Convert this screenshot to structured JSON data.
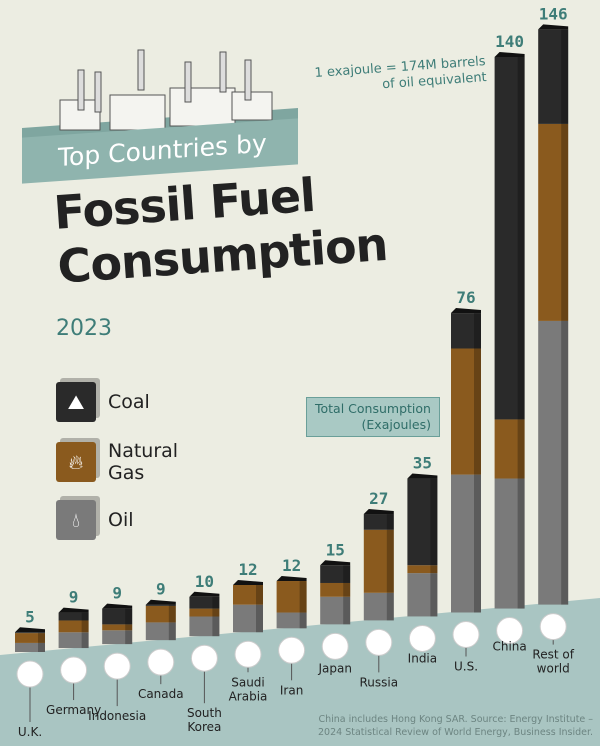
{
  "header": {
    "banner": "Top Countries by",
    "title_line1": "Fossil Fuel",
    "title_line2": "Consumption",
    "year": "2023"
  },
  "legend": [
    {
      "label": "Coal",
      "color": "#2a2a2a",
      "icon": "coal-rock-icon"
    },
    {
      "label": "Natural Gas",
      "color": "#8a5a1e",
      "icon": "flame-icon"
    },
    {
      "label": "Oil",
      "color": "#7a7a7a",
      "icon": "oil-drop-icon"
    }
  ],
  "note": {
    "line1": "1 exajoule = 174M barrels",
    "line2": "of oil equivalent"
  },
  "callout": {
    "line1": "Total Consumption",
    "line2": "(Exajoules)"
  },
  "source": {
    "line1": "China includes Hong Kong SAR. Source: Energy Institute –",
    "line2": "2024 Statistical Review of World Energy, Business Insider."
  },
  "chart_data": {
    "type": "bar",
    "stacked": true,
    "unit": "Exajoules",
    "categories": [
      "U.K.",
      "Germany",
      "Indonesia",
      "Canada",
      "South Korea",
      "Saudi Arabia",
      "Iran",
      "Japan",
      "Russia",
      "India",
      "U.S.",
      "China",
      "Rest of world"
    ],
    "totals": [
      5,
      9,
      9,
      9,
      10,
      12,
      12,
      15,
      27,
      35,
      76,
      140,
      146
    ],
    "series": [
      {
        "name": "Coal",
        "color": "#2a2a2a",
        "values": [
          0.2,
          2,
          4,
          0.3,
          3,
          0,
          0,
          4.5,
          4,
          22,
          9,
          92,
          24
        ]
      },
      {
        "name": "Natural Gas",
        "color": "#8a5a1e",
        "values": [
          2.5,
          3,
          1.5,
          4.2,
          2,
          5,
          8,
          3.5,
          16,
          2,
          32,
          15,
          50
        ]
      },
      {
        "name": "Oil",
        "color": "#7a7a7a",
        "values": [
          2.3,
          4,
          3.5,
          4.5,
          5,
          7,
          4,
          7,
          7,
          11,
          35,
          33,
          72
        ]
      }
    ]
  }
}
